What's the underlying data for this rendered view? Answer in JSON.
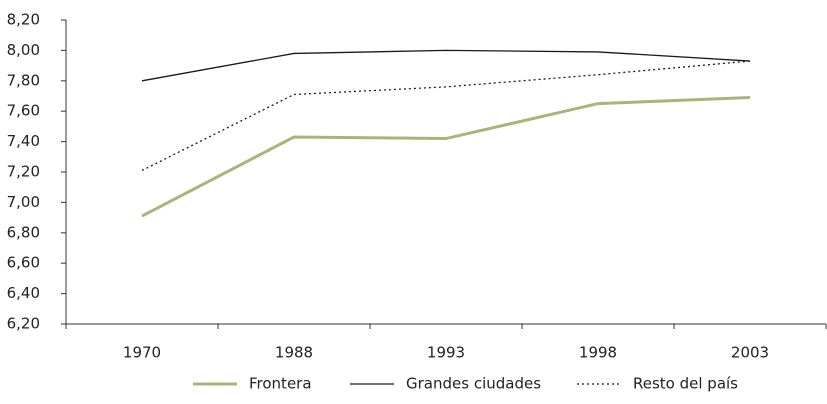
{
  "chart_data": {
    "type": "line",
    "categories": [
      "1970",
      "1988",
      "1993",
      "1998",
      "2003"
    ],
    "series": [
      {
        "name": "Frontera",
        "color": "#a9b47d",
        "values": [
          6.91,
          7.43,
          7.42,
          7.65,
          7.69
        ]
      },
      {
        "name": "Grandes ciudades",
        "color": "#1a1a1a",
        "values": [
          7.8,
          7.98,
          8.0,
          7.99,
          7.93
        ]
      },
      {
        "name": "Resto del país",
        "color": "#1a1a1a",
        "values": [
          7.21,
          7.71,
          7.76,
          7.84,
          7.93
        ]
      }
    ],
    "ylim": [
      6.2,
      8.2
    ],
    "yticks": [
      {
        "value": 6.2,
        "label": "6,20"
      },
      {
        "value": 6.4,
        "label": "6,40"
      },
      {
        "value": 6.6,
        "label": "6,60"
      },
      {
        "value": 6.8,
        "label": "6,80"
      },
      {
        "value": 7.0,
        "label": "7,00"
      },
      {
        "value": 7.2,
        "label": "7,20"
      },
      {
        "value": 7.4,
        "label": "7,40"
      },
      {
        "value": 7.6,
        "label": "7,60"
      },
      {
        "value": 7.8,
        "label": "7,80"
      },
      {
        "value": 8.0,
        "label": "8,00"
      },
      {
        "value": 8.2,
        "label": "8,20"
      }
    ],
    "grid": false
  }
}
